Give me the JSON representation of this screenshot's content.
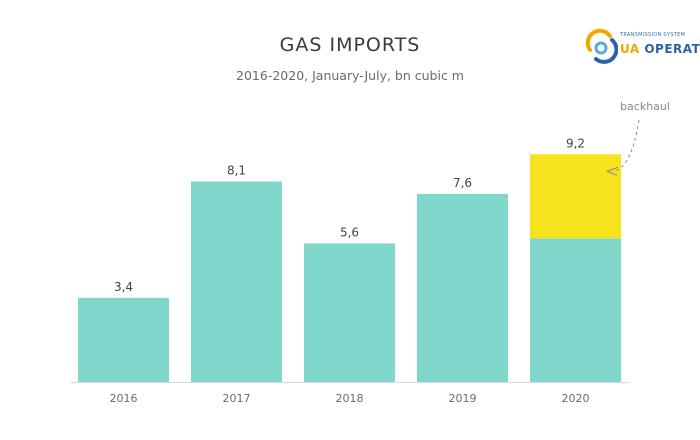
{
  "header": {
    "title": "GAS IMPORTS",
    "subtitle": "2016-2020, January-July, bn cubic m"
  },
  "logo": {
    "small_text": "TRANSMISSION SYSTEM",
    "ua_text": "UA",
    "main_text": "OPERATOR",
    "colors": {
      "orange": "#f0a800",
      "blue": "#2a63a8",
      "light_blue": "#5aa8e0"
    }
  },
  "colors": {
    "base": "#80d8cc",
    "backhaul": "#f6e31e",
    "axis": "#d9d9d9"
  },
  "chart_data": {
    "type": "bar",
    "stacked": true,
    "categories": [
      "2016",
      "2017",
      "2018",
      "2019",
      "2020"
    ],
    "series": [
      {
        "name": "",
        "values": [
          3.4,
          8.1,
          5.6,
          7.6,
          5.8
        ]
      },
      {
        "name": "backhaul",
        "values": [
          0,
          0,
          0,
          0,
          3.4
        ]
      }
    ],
    "total_labels": [
      "3,4",
      "8,1",
      "5,6",
      "7,6",
      "9,2"
    ],
    "annotation": "backhaul",
    "ylim": [
      0,
      12.2
    ],
    "grid": false,
    "legend": "none"
  }
}
